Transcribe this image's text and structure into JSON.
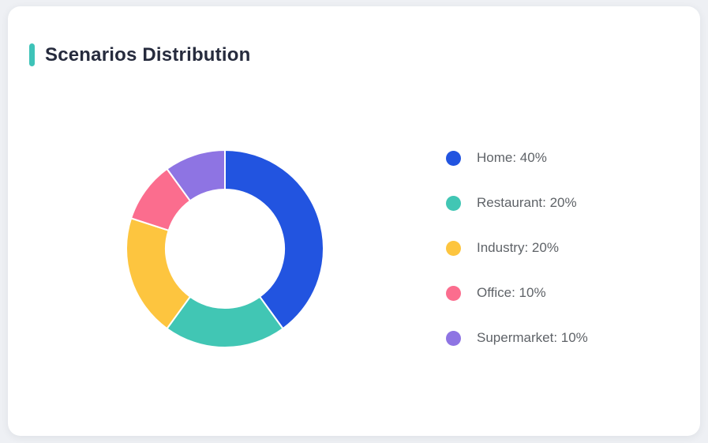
{
  "page": {
    "background_color": "#eef0f4"
  },
  "card": {
    "background_color": "#ffffff",
    "accent_color": "#3ec3b8",
    "title": "Scenarios Distribution",
    "title_color": "#262b3d"
  },
  "chart_data": {
    "type": "pie",
    "variant": "donut",
    "title": "Scenarios Distribution",
    "categories": [
      "Home",
      "Restaurant",
      "Industry",
      "Office",
      "Supermarket"
    ],
    "values": [
      40,
      20,
      20,
      10,
      10
    ],
    "value_unit": "%",
    "colors": [
      "#2254e0",
      "#41c6b4",
      "#fdc53f",
      "#fb6d8e",
      "#8e74e3"
    ],
    "legend_labels": [
      "Home: 40%",
      "Restaurant: 20%",
      "Industry: 20%",
      "Office: 10%",
      "Supermarket: 10%"
    ],
    "legend_position": "right",
    "start_angle_deg": 0,
    "direction": "clockwise",
    "inner_radius_ratio": 0.6,
    "segment_border_color": "#ffffff",
    "segment_border_width": 2
  }
}
